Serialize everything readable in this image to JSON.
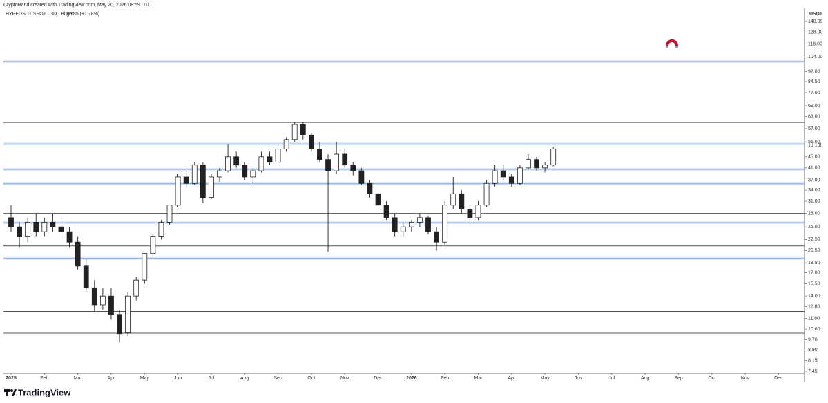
{
  "header": {
    "credit": "CryptoRand created with TradingView.com, May 20, 2026 08:59 UTC",
    "symbol": "HYPEUSDT SPOT · 3D · Bitget",
    "change": "+0.85 (+1.78%)"
  },
  "chart_data": {
    "type": "candlestick",
    "y_unit": "USDT",
    "countdown": "1d 16h",
    "log_scale": true,
    "ylim": [
      7.45,
      140
    ],
    "yticks": [
      {
        "value": 140,
        "label": "140.00"
      },
      {
        "value": 128,
        "label": "128.00"
      },
      {
        "value": 116,
        "label": "116.00"
      },
      {
        "value": 104,
        "label": "104.00"
      },
      {
        "value": 92,
        "label": "92.00"
      },
      {
        "value": 84.5,
        "label": "84.50"
      },
      {
        "value": 77,
        "label": "77.00"
      },
      {
        "value": 69,
        "label": "69.00"
      },
      {
        "value": 63,
        "label": "63.00"
      },
      {
        "value": 57,
        "label": "57.00"
      },
      {
        "value": 51,
        "label": "51.00"
      },
      {
        "value": 45,
        "label": "45.00"
      },
      {
        "value": 41,
        "label": "41.00"
      },
      {
        "value": 37,
        "label": "37.00"
      },
      {
        "value": 34,
        "label": "34.00"
      },
      {
        "value": 31,
        "label": "31.00"
      },
      {
        "value": 28,
        "label": "28.00"
      },
      {
        "value": 25,
        "label": "25.00"
      },
      {
        "value": 22.5,
        "label": "22.50"
      },
      {
        "value": 20.5,
        "label": "20.50"
      },
      {
        "value": 18.5,
        "label": "18.50"
      },
      {
        "value": 17,
        "label": "17.00"
      },
      {
        "value": 15.5,
        "label": "15.50"
      },
      {
        "value": 14,
        "label": "14.00"
      },
      {
        "value": 12.8,
        "label": "12.80"
      },
      {
        "value": 11.6,
        "label": "11.60"
      },
      {
        "value": 10.6,
        "label": "10.60"
      },
      {
        "value": 9.7,
        "label": "9.70"
      },
      {
        "value": 8.9,
        "label": "8.90"
      },
      {
        "value": 8.15,
        "label": "8.15"
      },
      {
        "value": 7.45,
        "label": "7.45"
      }
    ],
    "categories": [
      "2025",
      null,
      null,
      null,
      "Feb",
      null,
      null,
      null,
      "Mar",
      null,
      null,
      null,
      "Apr",
      null,
      null,
      null,
      "May",
      null,
      null,
      null,
      "Jun",
      null,
      null,
      null,
      "Jul",
      null,
      null,
      null,
      "Aug",
      null,
      null,
      null,
      "Sep",
      null,
      null,
      null,
      "Oct",
      null,
      null,
      null,
      "Nov",
      null,
      null,
      null,
      "Dec",
      null,
      null,
      null,
      "2026",
      null,
      null,
      null,
      "Feb",
      null,
      null,
      null,
      "Mar",
      null,
      null,
      null,
      "Apr",
      null,
      null,
      null,
      "May",
      null,
      null,
      null,
      "Jun",
      null,
      null,
      null,
      "Jul",
      null,
      null,
      null,
      "Aug",
      null,
      null,
      null,
      "Sep",
      null,
      null,
      null,
      "Oct",
      null,
      null,
      null,
      "Nov",
      null,
      null,
      null,
      "Dec",
      null,
      null,
      null
    ],
    "open": [
      27,
      25,
      23,
      26,
      24,
      26,
      25,
      24,
      22,
      18,
      15,
      13,
      14,
      12,
      10.3,
      14,
      16,
      20,
      23,
      26,
      30,
      38,
      36,
      42,
      32,
      38,
      40,
      45,
      42,
      38,
      40,
      45,
      43,
      48,
      52,
      59,
      54,
      48,
      44,
      40,
      46,
      42,
      40,
      36,
      33,
      30,
      27,
      24,
      25,
      26,
      27,
      24,
      22,
      30,
      33,
      29,
      27,
      30,
      36,
      40,
      38,
      36,
      41,
      44,
      41,
      42,
      null,
      null,
      null,
      null,
      null,
      null,
      null,
      null,
      null,
      null,
      null,
      null,
      null,
      null,
      null,
      null,
      null,
      null,
      null,
      null,
      null,
      null,
      null,
      null,
      null,
      null,
      null,
      null,
      null,
      null
    ],
    "high": [
      30,
      26,
      27,
      28,
      27,
      28,
      27,
      25,
      23,
      19,
      16,
      15,
      15,
      12.5,
      14.5,
      16.5,
      20,
      23.5,
      26.5,
      30,
      39,
      40,
      43,
      43,
      39,
      41,
      50,
      47,
      43,
      41,
      47,
      47,
      49,
      53,
      60,
      60,
      55,
      51,
      46,
      51,
      48,
      43,
      41,
      37,
      34,
      31,
      28,
      26,
      26.5,
      28,
      27.5,
      25,
      31,
      38,
      34,
      30,
      31,
      37,
      42,
      42,
      39,
      42,
      46,
      45,
      43,
      49,
      null,
      null,
      null,
      null,
      null,
      null,
      null,
      null,
      null,
      null,
      null,
      null,
      null,
      null,
      null,
      null,
      null,
      null,
      null,
      null,
      null,
      null,
      null,
      null,
      null,
      null,
      null,
      null,
      null,
      null
    ],
    "low": [
      24,
      21,
      22,
      23,
      23,
      24,
      23,
      21,
      17.5,
      14.5,
      12.2,
      12.5,
      11.5,
      9.5,
      10,
      13.5,
      15.5,
      19.5,
      22.5,
      25.5,
      29.5,
      35,
      35.5,
      30.5,
      31.5,
      36.5,
      39.5,
      41,
      37,
      36,
      39.5,
      42,
      42.5,
      47,
      51,
      52,
      47,
      43,
      20.3,
      39,
      41,
      38.5,
      35.5,
      32,
      29,
      26.5,
      23,
      23,
      24,
      25,
      23.5,
      20.5,
      21.5,
      29,
      28,
      25.5,
      26.5,
      29.5,
      35,
      37,
      35,
      35.5,
      40.5,
      40,
      39.5,
      41.5,
      null,
      null,
      null,
      null,
      null,
      null,
      null,
      null,
      null,
      null,
      null,
      null,
      null,
      null,
      null,
      null,
      null,
      null,
      null,
      null,
      null,
      null,
      null,
      null,
      null,
      null,
      null,
      null,
      null,
      null
    ],
    "close": [
      25,
      23,
      26,
      24,
      26,
      25,
      24,
      22,
      18,
      15,
      13,
      14,
      12,
      10.2,
      14,
      16,
      20,
      23,
      26,
      30,
      38,
      36,
      42,
      32,
      38,
      40,
      45,
      42,
      38,
      40,
      45,
      43,
      48,
      52,
      59,
      54,
      48,
      44,
      40,
      46,
      42,
      40,
      36,
      33,
      30,
      27,
      24,
      25,
      26,
      27,
      24,
      22,
      30,
      33,
      29,
      27,
      30,
      36,
      40,
      38,
      36,
      41,
      44,
      41,
      42,
      48,
      null,
      null,
      null,
      null,
      null,
      null,
      null,
      null,
      null,
      null,
      null,
      null,
      null,
      null,
      null,
      null,
      null,
      null,
      null,
      null,
      null,
      null,
      null,
      null,
      null,
      null,
      null,
      null,
      null,
      null
    ],
    "levels": [
      {
        "value": 100,
        "color": "#7fa6e0"
      },
      {
        "value": 60,
        "color": "#555555"
      },
      {
        "value": 50.1,
        "color": "#7fa6e0"
      },
      {
        "value": 40.5,
        "color": "#7fa6e0"
      },
      {
        "value": 35.9,
        "color": "#7fa6e0"
      },
      {
        "value": 28,
        "color": "#555555"
      },
      {
        "value": 25.9,
        "color": "#7fa6e0"
      },
      {
        "value": 21.3,
        "color": "#555555"
      },
      {
        "value": 19.2,
        "color": "#7fa6e0"
      },
      {
        "value": 12.3,
        "color": "#555555"
      },
      {
        "value": 10.25,
        "color": "#555555"
      }
    ]
  },
  "footer": {
    "brand": "TradingView"
  }
}
